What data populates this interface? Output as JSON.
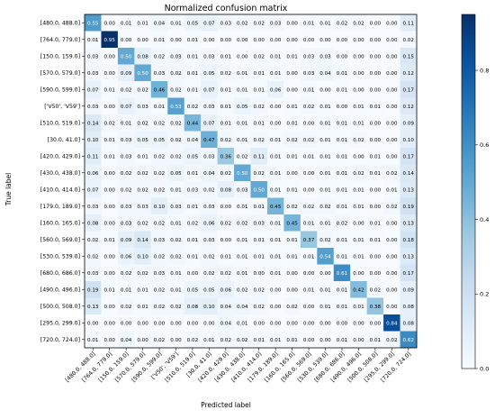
{
  "chart_data": {
    "type": "heatmap",
    "title": "Normalized confusion matrix",
    "xlabel": "Predicted label",
    "ylabel": "True label",
    "labels": [
      "[480.0, 488.0]",
      "[764.0, 779.0]",
      "[150.0, 159.0]",
      "[570.0, 579.0]",
      "[590.0, 599.0]",
      "['V50', 'V59']",
      "[510.0, 519.0]",
      "[30.0, 41.0]",
      "[420.0, 429.0]",
      "[430.0, 438.0]",
      "[410.0, 414.0]",
      "[179.0, 189.0]",
      "[160.0, 165.0]",
      "[560.0, 569.0]",
      "[530.0, 539.0]",
      "[680.0, 686.0]",
      "[490.0, 496.0]",
      "[500.0, 508.0]",
      "[295.0, 299.0]",
      "[720.0, 724.0]"
    ],
    "matrix": [
      [
        "0.55",
        "0.00",
        "0.01",
        "0.01",
        "0.04",
        "0.01",
        "0.05",
        "0.07",
        "0.03",
        "0.02",
        "0.02",
        "0.03",
        "0.00",
        "0.01",
        "0.01",
        "0.02",
        "0.02",
        "0.00",
        "0.00",
        "0.11"
      ],
      [
        "0.01",
        "0.95",
        "0.00",
        "0.00",
        "0.01",
        "0.00",
        "0.01",
        "0.00",
        "0.00",
        "0.00",
        "0.00",
        "0.00",
        "0.00",
        "0.00",
        "0.00",
        "0.00",
        "0.00",
        "0.00",
        "0.00",
        "0.02"
      ],
      [
        "0.03",
        "0.00",
        "0.50",
        "0.08",
        "0.02",
        "0.03",
        "0.01",
        "0.03",
        "0.01",
        "0.00",
        "0.02",
        "0.01",
        "0.01",
        "0.03",
        "0.03",
        "0.00",
        "0.00",
        "0.00",
        "0.00",
        "0.15"
      ],
      [
        "0.03",
        "0.00",
        "0.09",
        "0.50",
        "0.03",
        "0.02",
        "0.01",
        "0.05",
        "0.02",
        "0.01",
        "0.01",
        "0.01",
        "0.00",
        "0.03",
        "0.04",
        "0.01",
        "0.00",
        "0.00",
        "0.00",
        "0.12"
      ],
      [
        "0.07",
        "0.01",
        "0.02",
        "0.02",
        "0.46",
        "0.02",
        "0.01",
        "0.07",
        "0.01",
        "0.01",
        "0.01",
        "0.06",
        "0.00",
        "0.01",
        "0.00",
        "0.01",
        "0.00",
        "0.00",
        "0.00",
        "0.17"
      ],
      [
        "0.03",
        "0.00",
        "0.07",
        "0.03",
        "0.01",
        "0.53",
        "0.02",
        "0.03",
        "0.01",
        "0.05",
        "0.02",
        "0.00",
        "0.01",
        "0.02",
        "0.01",
        "0.00",
        "0.01",
        "0.01",
        "0.00",
        "0.12"
      ],
      [
        "0.14",
        "0.02",
        "0.01",
        "0.02",
        "0.02",
        "0.02",
        "0.44",
        "0.07",
        "0.01",
        "0.01",
        "0.01",
        "0.00",
        "0.01",
        "0.00",
        "0.01",
        "0.01",
        "0.01",
        "0.00",
        "0.00",
        "0.09"
      ],
      [
        "0.10",
        "0.01",
        "0.03",
        "0.05",
        "0.05",
        "0.02",
        "0.04",
        "0.47",
        "0.02",
        "0.01",
        "0.02",
        "0.01",
        "0.02",
        "0.02",
        "0.01",
        "0.01",
        "0.02",
        "0.00",
        "0.00",
        "0.10"
      ],
      [
        "0.11",
        "0.01",
        "0.03",
        "0.01",
        "0.02",
        "0.02",
        "0.05",
        "0.03",
        "0.36",
        "0.02",
        "0.11",
        "0.01",
        "0.01",
        "0.01",
        "0.01",
        "0.01",
        "0.00",
        "0.01",
        "0.00",
        "0.17"
      ],
      [
        "0.06",
        "0.00",
        "0.02",
        "0.02",
        "0.02",
        "0.05",
        "0.01",
        "0.04",
        "0.02",
        "0.50",
        "0.02",
        "0.01",
        "0.00",
        "0.00",
        "0.01",
        "0.01",
        "0.02",
        "0.01",
        "0.02",
        "0.14"
      ],
      [
        "0.07",
        "0.00",
        "0.02",
        "0.02",
        "0.02",
        "0.01",
        "0.03",
        "0.02",
        "0.08",
        "0.03",
        "0.50",
        "0.01",
        "0.01",
        "0.00",
        "0.01",
        "0.01",
        "0.01",
        "0.00",
        "0.01",
        "0.13"
      ],
      [
        "0.03",
        "0.00",
        "0.03",
        "0.03",
        "0.10",
        "0.03",
        "0.01",
        "0.03",
        "0.00",
        "0.01",
        "0.01",
        "0.45",
        "0.02",
        "0.02",
        "0.02",
        "0.01",
        "0.01",
        "0.00",
        "0.02",
        "0.19"
      ],
      [
        "0.08",
        "0.00",
        "0.03",
        "0.02",
        "0.02",
        "0.01",
        "0.02",
        "0.06",
        "0.02",
        "0.02",
        "0.03",
        "0.01",
        "0.45",
        "0.01",
        "0.01",
        "0.02",
        "0.00",
        "0.01",
        "0.00",
        "0.13"
      ],
      [
        "0.02",
        "0.01",
        "0.09",
        "0.14",
        "0.03",
        "0.02",
        "0.01",
        "0.03",
        "0.00",
        "0.01",
        "0.01",
        "0.01",
        "0.01",
        "0.37",
        "0.02",
        "0.01",
        "0.01",
        "0.01",
        "0.00",
        "0.18"
      ],
      [
        "0.02",
        "0.00",
        "0.06",
        "0.10",
        "0.02",
        "0.02",
        "0.01",
        "0.02",
        "0.01",
        "0.01",
        "0.01",
        "0.01",
        "0.01",
        "0.01",
        "0.54",
        "0.01",
        "0.01",
        "0.00",
        "0.00",
        "0.13"
      ],
      [
        "0.03",
        "0.00",
        "0.02",
        "0.02",
        "0.03",
        "0.01",
        "0.00",
        "0.02",
        "0.02",
        "0.01",
        "0.00",
        "0.01",
        "0.00",
        "0.00",
        "0.00",
        "0.61",
        "0.00",
        "0.00",
        "0.00",
        "0.17"
      ],
      [
        "0.19",
        "0.01",
        "0.01",
        "0.01",
        "0.02",
        "0.01",
        "0.05",
        "0.05",
        "0.06",
        "0.02",
        "0.02",
        "0.00",
        "0.00",
        "0.01",
        "0.01",
        "0.01",
        "0.42",
        "0.02",
        "0.00",
        "0.09"
      ],
      [
        "0.13",
        "0.00",
        "0.02",
        "0.01",
        "0.02",
        "0.02",
        "0.08",
        "0.10",
        "0.04",
        "0.04",
        "0.02",
        "0.00",
        "0.02",
        "0.00",
        "0.01",
        "0.01",
        "0.01",
        "0.38",
        "0.00",
        "0.08"
      ],
      [
        "0.00",
        "0.00",
        "0.00",
        "0.00",
        "0.00",
        "0.00",
        "0.00",
        "0.00",
        "0.04",
        "0.01",
        "0.00",
        "0.00",
        "0.00",
        "0.00",
        "0.00",
        "0.00",
        "0.00",
        "0.00",
        "0.84",
        "0.08"
      ],
      [
        "0.01",
        "0.00",
        "0.04",
        "0.00",
        "0.02",
        "0.00",
        "0.02",
        "0.01",
        "0.02",
        "0.02",
        "0.01",
        "0.01",
        "0.01",
        "0.00",
        "0.00",
        "0.01",
        "0.00",
        "0.01",
        "0.02",
        "0.62"
      ]
    ],
    "colorbar": {
      "ticks": [
        "0.0",
        "0.2",
        "0.4",
        "0.6",
        "0.8"
      ],
      "range": [
        0,
        0.95
      ],
      "colors": [
        "#f7fbff",
        "#deebf7",
        "#c6dbef",
        "#9ecae1",
        "#6baed6",
        "#4292c6",
        "#2171b5",
        "#08519c",
        "#08306b"
      ]
    }
  }
}
